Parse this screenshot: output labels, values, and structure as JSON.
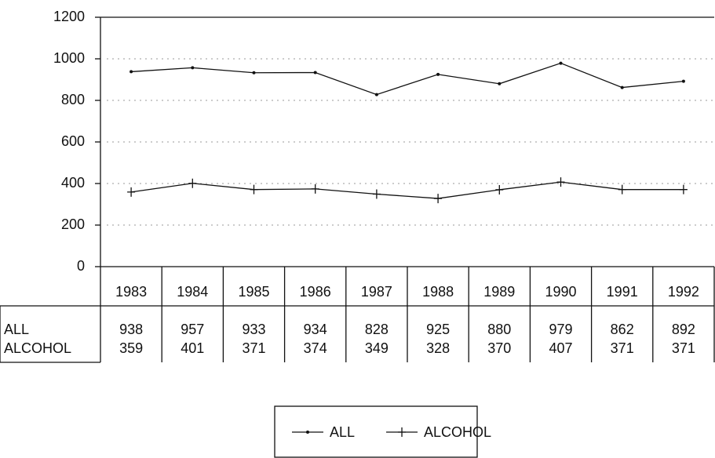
{
  "chart_data": {
    "type": "line",
    "categories": [
      "1983",
      "1984",
      "1985",
      "1986",
      "1987",
      "1988",
      "1989",
      "1990",
      "1991",
      "1992"
    ],
    "series": [
      {
        "name": "ALL",
        "color": "#111111",
        "marker": "dot",
        "values": [
          938,
          957,
          933,
          934,
          828,
          925,
          880,
          979,
          862,
          892
        ]
      },
      {
        "name": "ALCOHOL",
        "color": "#111111",
        "marker": "plus",
        "values": [
          359,
          401,
          371,
          374,
          349,
          328,
          370,
          407,
          371,
          371
        ]
      }
    ],
    "ylim": [
      0,
      1200
    ],
    "yticks": [
      0,
      200,
      400,
      600,
      800,
      1000,
      1200
    ],
    "grid": true,
    "legend": "bottom"
  }
}
